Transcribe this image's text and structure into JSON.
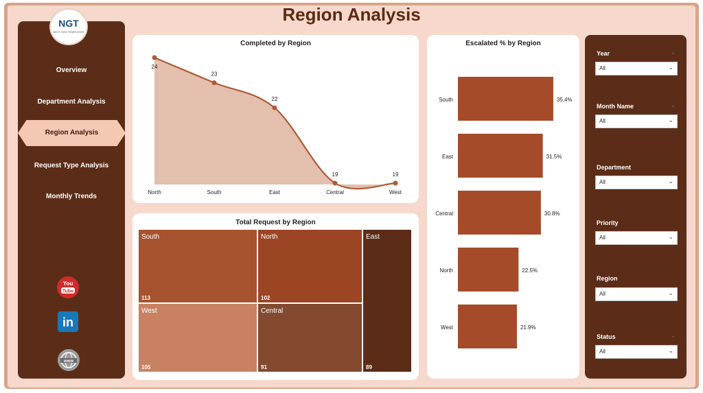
{
  "title": "Region Analysis",
  "logo": {
    "text": "NGT",
    "subtext": "NEXT GEN TEMPLATES"
  },
  "nav": {
    "items": [
      {
        "label": "Overview"
      },
      {
        "label": "Department Analysis"
      },
      {
        "label": "Region Analysis"
      },
      {
        "label": "Request Type Analysis"
      },
      {
        "label": "Monthly Trends"
      }
    ],
    "active_index": 2
  },
  "social": [
    {
      "name": "youtube-icon",
      "text": "You Tube"
    },
    {
      "name": "linkedin-icon",
      "text": "in"
    },
    {
      "name": "website-icon",
      "text": "www"
    }
  ],
  "filters": [
    {
      "label": "Year",
      "value": "All"
    },
    {
      "label": "Month Name",
      "value": "All"
    },
    {
      "label": "Department",
      "value": "All"
    },
    {
      "label": "Priority",
      "value": "All"
    },
    {
      "label": "Region",
      "value": "All"
    },
    {
      "label": "Status",
      "value": "All"
    }
  ],
  "colors": {
    "dark_brown": "#5b2d18",
    "accent": "#a54b2a",
    "area_fill": "#e3bfae",
    "line": "#b05a35"
  },
  "chart_data": [
    {
      "type": "area",
      "title": "Completed by Region",
      "categories": [
        "North",
        "South",
        "East",
        "Central",
        "West"
      ],
      "values": [
        24,
        23,
        22,
        19,
        19
      ],
      "ylim": [
        19,
        24
      ]
    },
    {
      "type": "bar",
      "orientation": "horizontal",
      "title": "Escalated % by Region",
      "categories": [
        "South",
        "East",
        "Central",
        "North",
        "West"
      ],
      "values": [
        35.4,
        31.5,
        30.8,
        22.5,
        21.9
      ],
      "value_labels": [
        "35.4%",
        "31.5%",
        "30.8%",
        "22.5%",
        "21.9%"
      ]
    },
    {
      "type": "treemap",
      "title": "Total Request by Region",
      "categories": [
        "South",
        "North",
        "East",
        "West",
        "Central"
      ],
      "values": [
        113,
        102,
        89,
        105,
        91
      ]
    }
  ]
}
